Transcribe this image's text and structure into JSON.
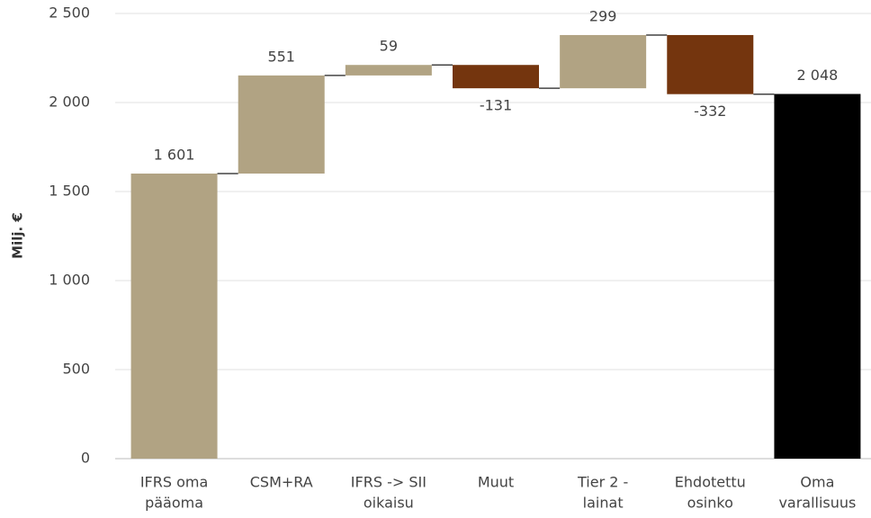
{
  "chart_data": {
    "type": "waterfall",
    "y_label": "Milj. €",
    "categories": [
      [
        "IFRS oma",
        "pääoma"
      ],
      [
        "CSM+RA"
      ],
      [
        "IFRS -> SII",
        "oikaisu"
      ],
      [
        "Muut"
      ],
      [
        "Tier 2 -",
        "lainat"
      ],
      [
        "Ehdotettu",
        "osinko"
      ],
      [
        "Oma",
        "varallisuus"
      ]
    ],
    "values": [
      1601,
      551,
      59,
      -131,
      299,
      -332,
      2048
    ],
    "value_labels": [
      "1 601",
      "551",
      "59",
      "-131",
      "299",
      "-332",
      "2 048"
    ],
    "is_total": [
      false,
      false,
      false,
      false,
      false,
      false,
      true
    ],
    "colors": [
      "#b1a383",
      "#b1a383",
      "#b1a383",
      "#74350e",
      "#b1a383",
      "#74350e",
      "#000000"
    ],
    "ylim": [
      0,
      2500
    ],
    "yticks": [
      0,
      500,
      {
        "value": 1000,
        "label": "1 000"
      },
      {
        "value": 1500,
        "label": "1 500"
      },
      {
        "value": 2000,
        "label": "2 000"
      },
      {
        "value": 2500,
        "label": "2 500"
      }
    ],
    "grid": true
  }
}
